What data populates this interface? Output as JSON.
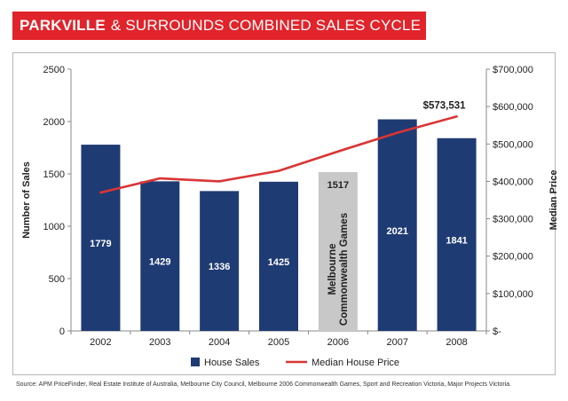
{
  "header": {
    "title_bold": "PARKVILLE",
    "title_rest": "& SURROUNDS COMBINED SALES CYCLE",
    "banner_color": "#e1242b"
  },
  "source_note": "Source: APM PriceFinder, Real Estate Institute of Australia, Melbourne City Council, Melbourne 2006 Commonwealth Games, Sport and Recreation Victoria, Major Projects Victoria.",
  "chart_data": {
    "type": "bar",
    "title": "PARKVILLE & SURROUNDS COMBINED SALES CYCLE",
    "categories": [
      "2002",
      "2003",
      "2004",
      "2005",
      "2006",
      "2007",
      "2008"
    ],
    "series": [
      {
        "name": "House Sales",
        "kind": "bar",
        "axis": "left",
        "color": "#1f3b73",
        "values": [
          1779,
          1429,
          1336,
          1425,
          1517,
          2021,
          1841
        ],
        "labels": [
          "1779",
          "1429",
          "1336",
          "1425",
          "1517",
          "2021",
          "1841"
        ],
        "highlight_index": 4,
        "highlight_color": "#c8c8c8"
      },
      {
        "name": "Median House Price",
        "kind": "line",
        "axis": "right",
        "color": "#d93535",
        "values": [
          370000,
          408000,
          400000,
          428000,
          480000,
          530000,
          573531
        ]
      }
    ],
    "ylabel": "Number of Sales",
    "ylim": [
      0,
      2500
    ],
    "yticks": [
      "0",
      "500",
      "1000",
      "1500",
      "2000",
      "2500"
    ],
    "y2label": "Median Price",
    "y2lim": [
      0,
      700000
    ],
    "y2ticks": [
      "$-",
      "$100,000",
      "$200,000",
      "$300,000",
      "$400,000",
      "$500,000",
      "$600,000",
      "$700,000"
    ],
    "annotations": {
      "bar_note": "Melbourne Commonwealth Games",
      "bar_note_line1": "Melbourne",
      "bar_note_line2": "Commonwealth Games",
      "end_label": "$573,531"
    },
    "grid": false,
    "legend_position": "bottom"
  }
}
